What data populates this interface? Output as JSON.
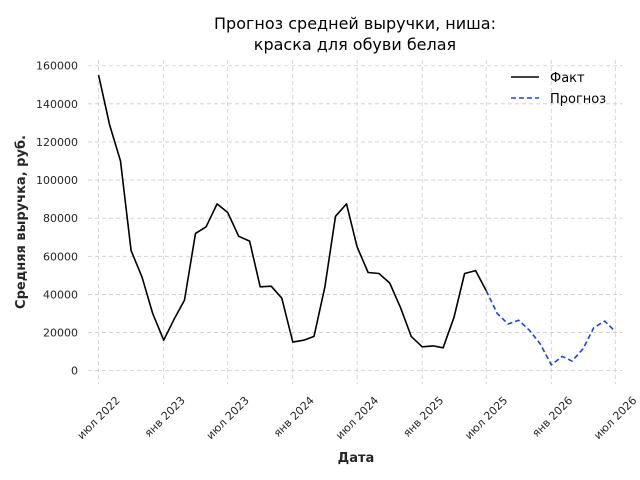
{
  "chart_data": {
    "type": "line",
    "title_lines": [
      "Прогноз средней выручки, ниша:",
      "краска для обуви белая"
    ],
    "xlabel": "Дата",
    "ylabel": "Средняя выручка, руб.",
    "ylim": [
      -7000,
      163000
    ],
    "xlim": [
      "2022-06-01",
      "2026-07-20"
    ],
    "grid": true,
    "legend_position": "top-right",
    "y_ticks": [
      0,
      20000,
      40000,
      60000,
      80000,
      100000,
      120000,
      140000,
      160000
    ],
    "x_ticks": [
      {
        "date": "2022-07-01",
        "label": "июл 2022"
      },
      {
        "date": "2023-01-01",
        "label": "янв 2023"
      },
      {
        "date": "2023-07-01",
        "label": "июл 2023"
      },
      {
        "date": "2024-01-01",
        "label": "янв 2024"
      },
      {
        "date": "2024-07-01",
        "label": "июл 2024"
      },
      {
        "date": "2025-01-01",
        "label": "янв 2025"
      },
      {
        "date": "2025-07-01",
        "label": "июл 2025"
      },
      {
        "date": "2026-01-01",
        "label": "янв 2026"
      },
      {
        "date": "2026-07-01",
        "label": "июл 2026"
      }
    ],
    "series": [
      {
        "name": "Факт",
        "color": "#000000",
        "style": "solid",
        "points": [
          [
            "2022-07-01",
            155000
          ],
          [
            "2022-08-01",
            129000
          ],
          [
            "2022-09-01",
            110000
          ],
          [
            "2022-10-01",
            63000
          ],
          [
            "2022-11-01",
            49000
          ],
          [
            "2022-12-01",
            30000
          ],
          [
            "2023-01-01",
            16000
          ],
          [
            "2023-02-01",
            27500
          ],
          [
            "2023-03-01",
            37000
          ],
          [
            "2023-04-01",
            72000
          ],
          [
            "2023-05-01",
            75500
          ],
          [
            "2023-06-01",
            87500
          ],
          [
            "2023-07-01",
            83000
          ],
          [
            "2023-08-01",
            70500
          ],
          [
            "2023-09-01",
            68000
          ],
          [
            "2023-10-01",
            44000
          ],
          [
            "2023-11-01",
            44300
          ],
          [
            "2023-12-01",
            38000
          ],
          [
            "2024-01-01",
            15000
          ],
          [
            "2024-02-01",
            16000
          ],
          [
            "2024-03-01",
            18000
          ],
          [
            "2024-04-01",
            44000
          ],
          [
            "2024-05-01",
            81000
          ],
          [
            "2024-06-01",
            87500
          ],
          [
            "2024-07-01",
            65000
          ],
          [
            "2024-08-01",
            51500
          ],
          [
            "2024-09-01",
            51000
          ],
          [
            "2024-10-01",
            46000
          ],
          [
            "2024-11-01",
            33000
          ],
          [
            "2024-12-01",
            18000
          ],
          [
            "2025-01-01",
            12500
          ],
          [
            "2025-02-01",
            13000
          ],
          [
            "2025-03-01",
            12000
          ],
          [
            "2025-04-01",
            28000
          ],
          [
            "2025-05-01",
            51000
          ],
          [
            "2025-06-01",
            52500
          ],
          [
            "2025-07-01",
            42000
          ]
        ]
      },
      {
        "name": "Прогноз",
        "color": "#1a47d1",
        "style": "dashed",
        "points": [
          [
            "2025-07-01",
            42000
          ],
          [
            "2025-08-01",
            30000
          ],
          [
            "2025-09-01",
            24500
          ],
          [
            "2025-10-01",
            26500
          ],
          [
            "2025-11-01",
            21000
          ],
          [
            "2025-12-01",
            14000
          ],
          [
            "2026-01-01",
            3000
          ],
          [
            "2026-02-01",
            7500
          ],
          [
            "2026-03-01",
            5000
          ],
          [
            "2026-04-01",
            11500
          ],
          [
            "2026-05-01",
            22500
          ],
          [
            "2026-06-01",
            26000
          ],
          [
            "2026-07-01",
            20500
          ]
        ]
      }
    ]
  }
}
